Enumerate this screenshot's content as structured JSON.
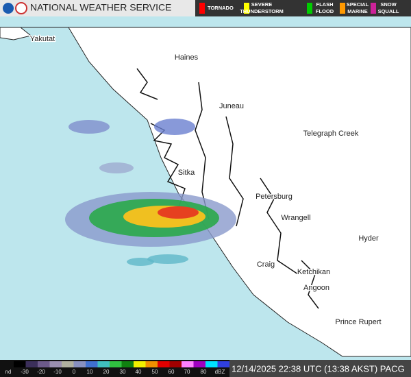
{
  "header": {
    "title": "NATIONAL WEATHER SERVICE"
  },
  "warnings": [
    {
      "lines": [
        "TORNADO"
      ],
      "color": "#ff0000"
    },
    {
      "lines": [
        "SEVERE",
        "THUNDERSTORM"
      ],
      "color": "#ffff00"
    },
    {
      "lines": [
        "FLASH",
        "FLOOD"
      ],
      "color": "#00cc00"
    },
    {
      "lines": [
        "SPECIAL",
        "MARINE"
      ],
      "color": "#ff9900"
    },
    {
      "lines": [
        "SNOW",
        "SQUALL"
      ],
      "color": "#cc2299"
    }
  ],
  "places": [
    "Yakutat",
    "Haines",
    "Juneau",
    "Telegraph Creek",
    "Sitka",
    "Petersburg",
    "Wrangell",
    "Hyder",
    "Craig",
    "Ketchikan",
    "Angoon",
    "Prince Rupert"
  ],
  "scale": {
    "labels": [
      "nd",
      "-30",
      "-20",
      "-10",
      "0",
      "10",
      "20",
      "30",
      "40",
      "50",
      "60",
      "70",
      "80",
      "dBZ"
    ]
  },
  "timestamp": "12/14/2025 22:38 UTC (13:38 AKST) PACG"
}
